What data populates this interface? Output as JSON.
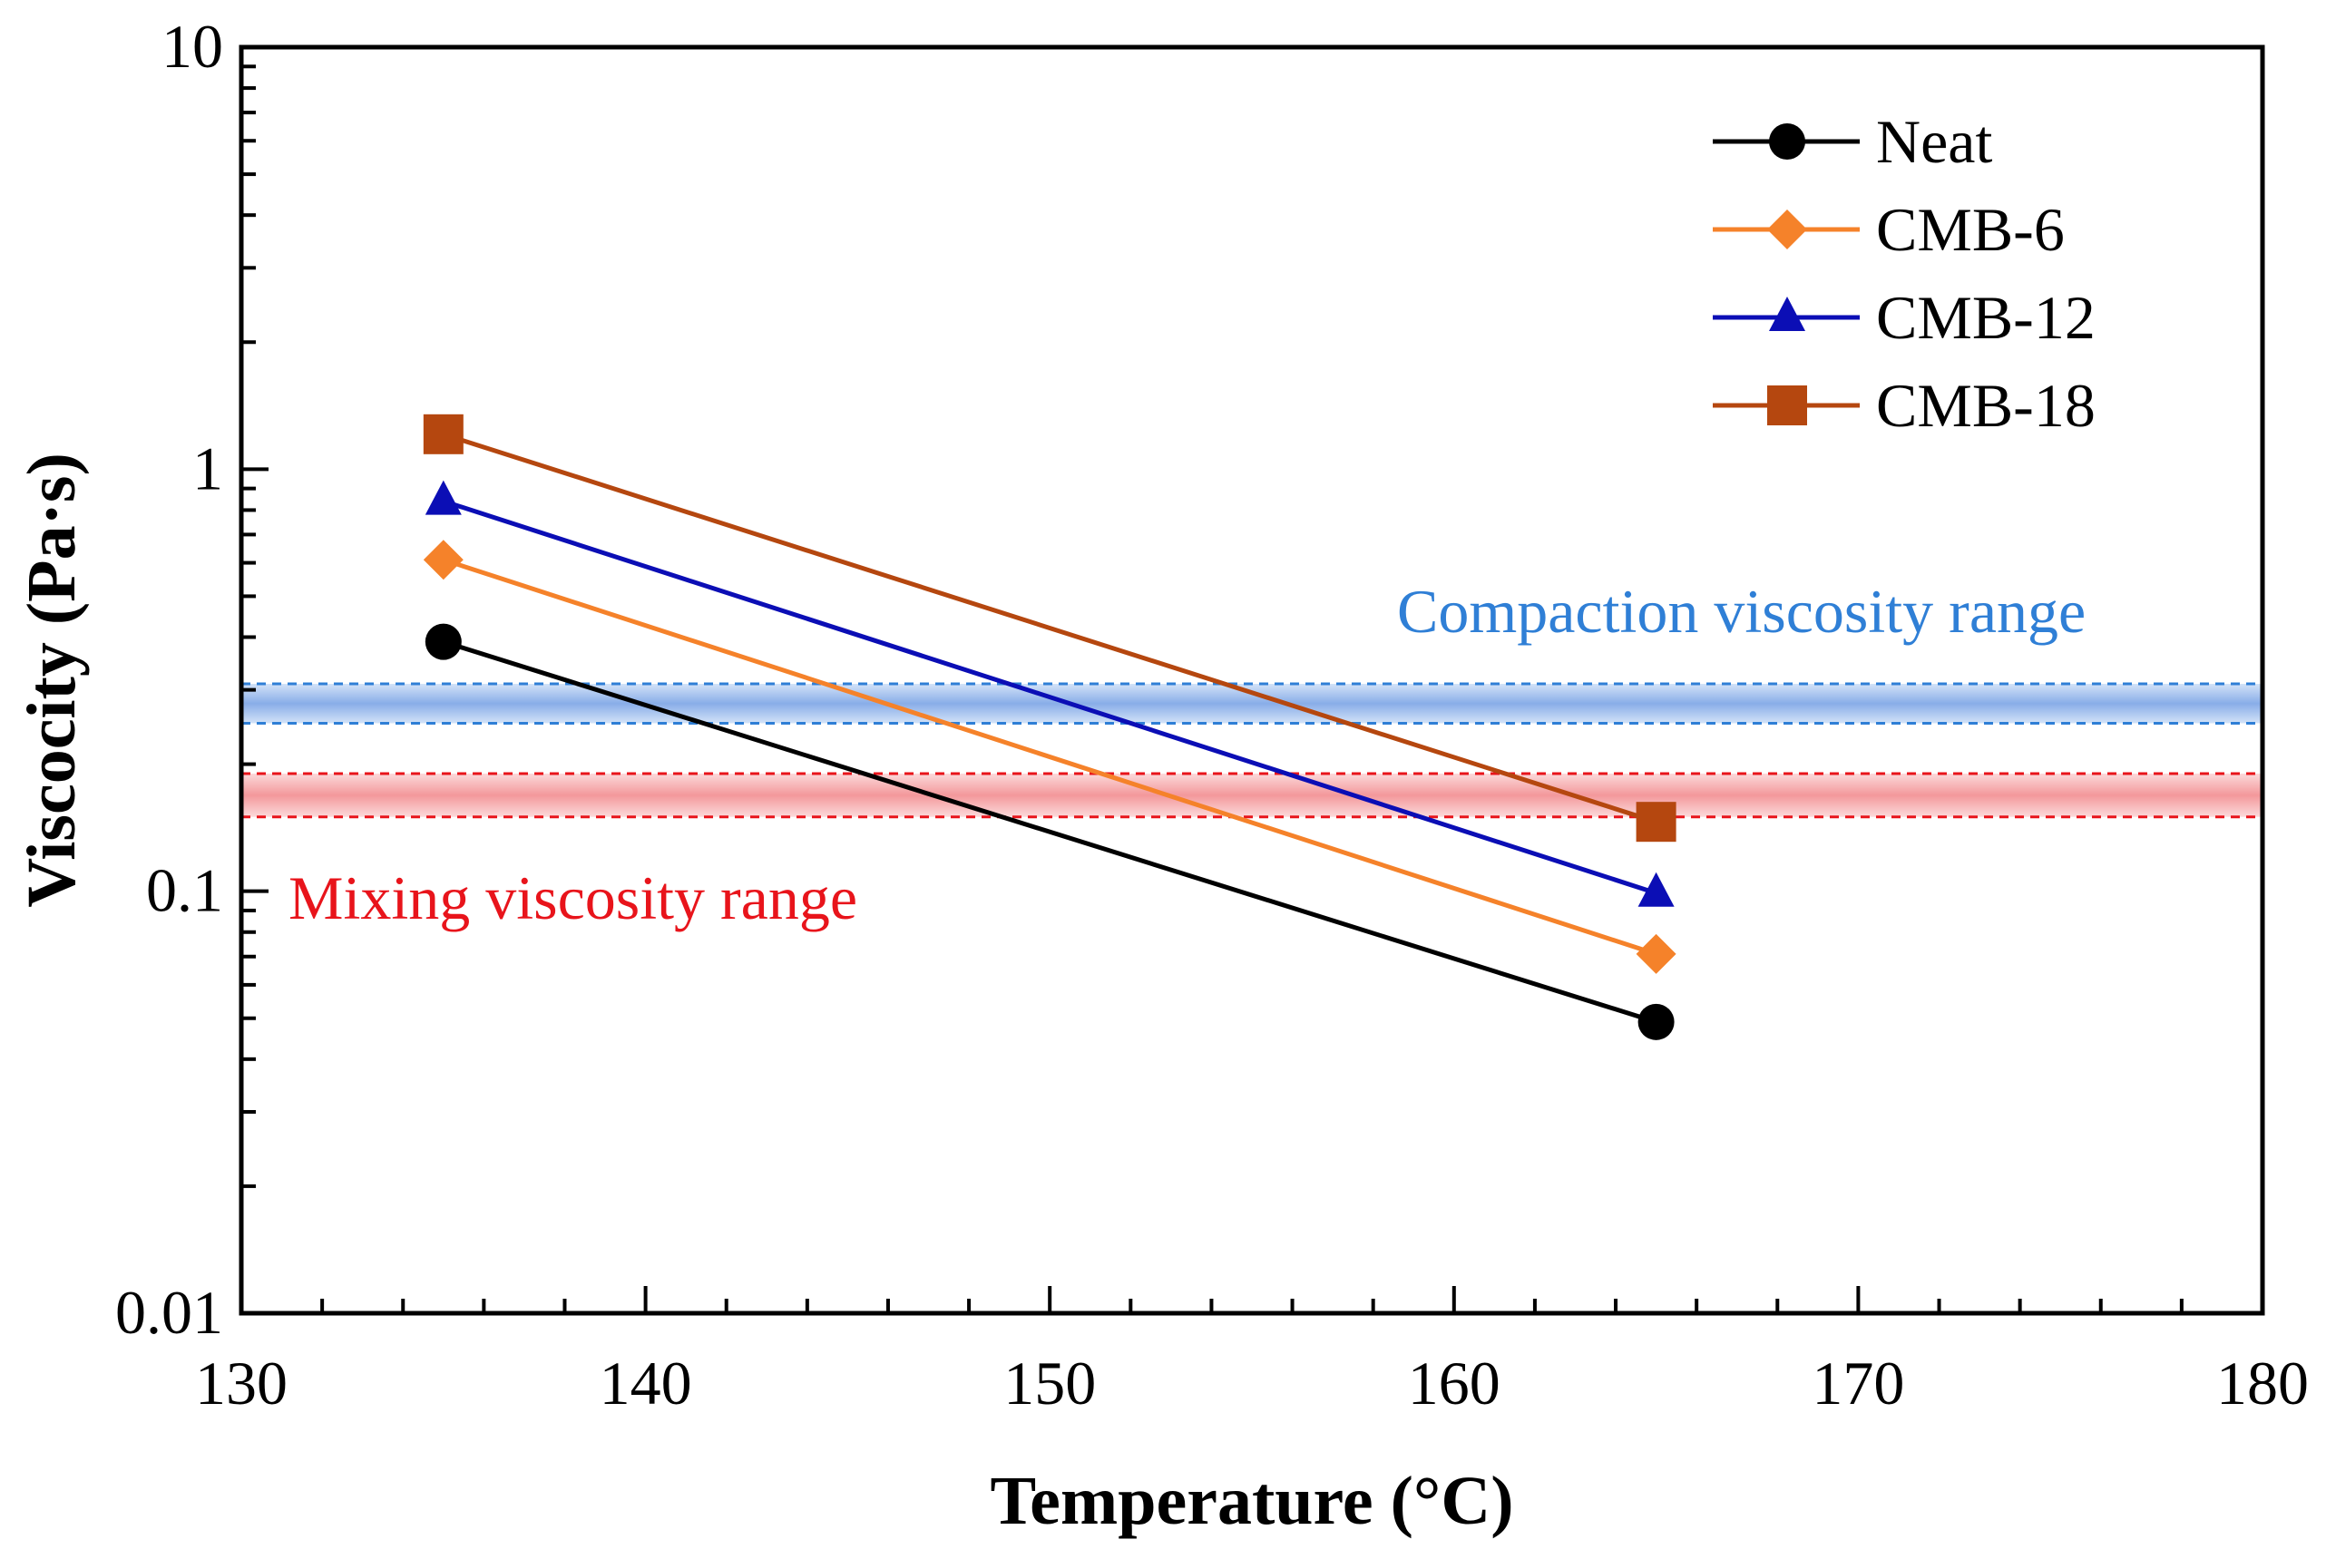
{
  "chart_data": {
    "type": "line",
    "title": "",
    "xlabel": "Temperature (°C)",
    "ylabel": "Viscocity (Pa·s)",
    "xlim": [
      130,
      180
    ],
    "ylim": [
      0.01,
      10
    ],
    "yscale": "log",
    "grid": false,
    "legend_position": "top-right",
    "x_ticks": [
      130,
      140,
      150,
      160,
      170,
      180
    ],
    "x_tick_labels": [
      "130",
      "140",
      "150",
      "160",
      "170",
      "180"
    ],
    "y_ticks": [
      0.01,
      0.1,
      1,
      10
    ],
    "y_tick_labels": [
      "0.01",
      "0.1",
      "1",
      "10"
    ],
    "x": [
      135,
      165
    ],
    "series": [
      {
        "name": "Neat",
        "marker": "circle",
        "color": "#000000",
        "values": [
          0.39,
          0.049
        ]
      },
      {
        "name": "CMB-6",
        "marker": "diamond",
        "color": "#F5822A",
        "values": [
          0.61,
          0.071
        ]
      },
      {
        "name": "CMB-12",
        "marker": "triangle",
        "color": "#0B0EB5",
        "values": [
          0.84,
          0.099
        ]
      },
      {
        "name": "CMB-18",
        "marker": "square",
        "color": "#B5470F",
        "values": [
          1.21,
          0.146
        ]
      }
    ],
    "bands": [
      {
        "name": "compaction",
        "label": "Compaction viscosity range",
        "range": [
          0.25,
          0.31
        ],
        "color": "#2F7FD6",
        "fill": "#8EB4EC"
      },
      {
        "name": "mixing",
        "label": "Mixing viscosity range",
        "range": [
          0.15,
          0.19
        ],
        "color": "#E8141B",
        "fill": "#F6A7A9"
      }
    ]
  }
}
